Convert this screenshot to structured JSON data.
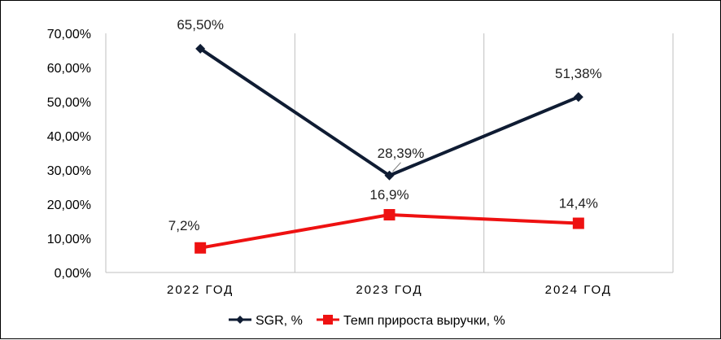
{
  "chart_data": {
    "type": "line",
    "categories": [
      "2022 ГОД",
      "2023 ГОД",
      "2024 ГОД"
    ],
    "series": [
      {
        "name": "SGR, %",
        "values": [
          65.5,
          28.39,
          51.38
        ],
        "labels": [
          "65,50%",
          "28,39%",
          "51,38%"
        ],
        "color": "#0f1c33",
        "marker": "diamond"
      },
      {
        "name": "Темп прироста выручки, %",
        "values": [
          7.2,
          16.9,
          14.4
        ],
        "labels": [
          "7,2%",
          "16,9%",
          "14,4%"
        ],
        "color": "#ee1111",
        "marker": "square"
      }
    ],
    "ylim": [
      0,
      70
    ],
    "yticks": [
      0,
      10,
      20,
      30,
      40,
      50,
      60,
      70
    ],
    "ytick_labels": [
      "0,00%",
      "10,00%",
      "20,00%",
      "30,00%",
      "40,00%",
      "50,00%",
      "60,00%",
      "70,00%"
    ],
    "grid": "vertical",
    "legend_position": "bottom"
  }
}
